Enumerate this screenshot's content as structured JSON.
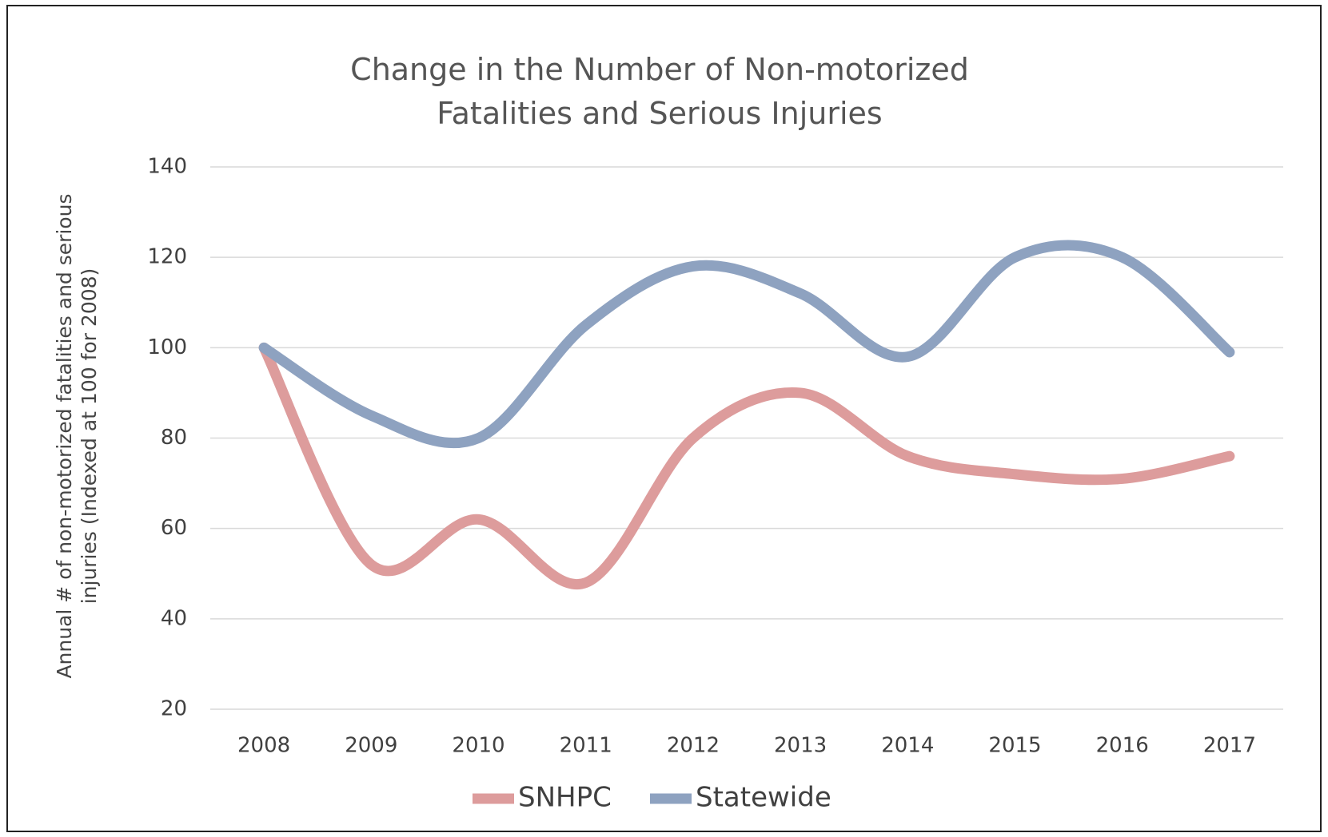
{
  "chart_data": {
    "type": "line",
    "title": "Change in the Number of Non-motorized Fatalities and Serious Injuries",
    "y_label": "Annual # of non-motorized  fatalities and serious injuries  (Indexed at 100 for 2008)",
    "categories": [
      "2008",
      "2009",
      "2010",
      "2011",
      "2012",
      "2013",
      "2014",
      "2015",
      "2016",
      "2017"
    ],
    "series": [
      {
        "name": "SNHPC",
        "color": "#dd9c9c",
        "values": [
          100,
          52,
          62,
          48,
          80,
          90,
          76,
          72,
          71,
          76
        ]
      },
      {
        "name": "Statewide",
        "color": "#8ea2c0",
        "values": [
          100,
          85,
          80,
          105,
          118,
          112,
          98,
          120,
          120,
          99
        ]
      }
    ],
    "ylim": [
      20,
      140
    ],
    "yticks": [
      20,
      40,
      60,
      80,
      100,
      120,
      140
    ],
    "grid": true,
    "legend": "bottom"
  }
}
